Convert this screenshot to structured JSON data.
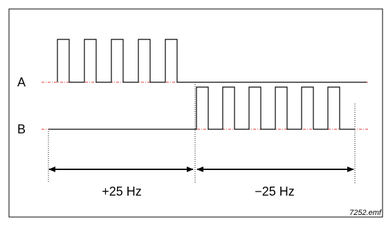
{
  "labels": {
    "channel_a": "A",
    "channel_b": "B",
    "left_frequency": "+25 Hz",
    "right_frequency": "−25 Hz",
    "file_caption": "7252.emf"
  },
  "colors": {
    "frame": "#000000",
    "signal": "#000000",
    "reference_line": "#e0332c",
    "dimension": "#000000"
  },
  "signal_a_pulses": 5,
  "signal_b_pulses": 6
}
